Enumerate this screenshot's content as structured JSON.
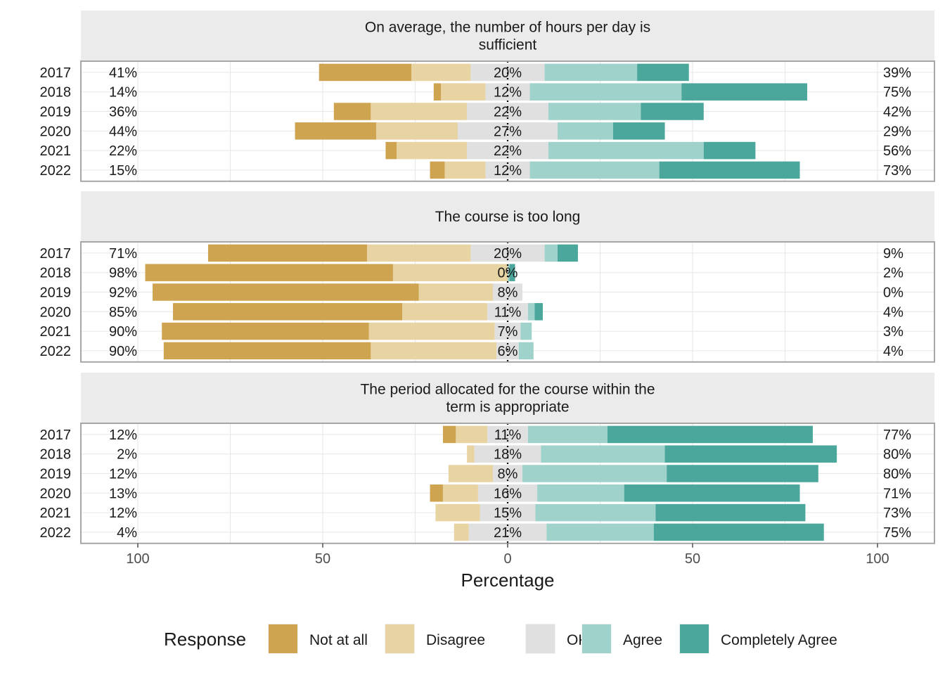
{
  "chart_data": {
    "type": "bar",
    "subtype": "diverging-stacked-horizontal",
    "x_axis_label": "Percentage",
    "x_ticks": [
      100,
      50,
      0,
      50,
      100
    ],
    "x_range": [
      -100,
      100
    ],
    "legend": {
      "title": "Response",
      "position": "bottom",
      "entries": [
        "Not at all",
        "Disagree",
        "OK",
        "Agree",
        "Completely Agree"
      ]
    },
    "colors": {
      "Not at all": "#CFA451",
      "Disagree": "#E8D3A2",
      "OK": "#E0E0E0",
      "Agree": "#9ED2CB",
      "Completely Agree": "#4BA79B"
    },
    "panels": [
      {
        "title_lines": [
          "On average, the number of hours per day is",
          "sufficient"
        ],
        "rows": [
          {
            "year": "2017",
            "values": [
              25,
              16,
              20,
              25,
              14
            ],
            "left_label": "41%",
            "center_label": "20%",
            "right_label": "39%"
          },
          {
            "year": "2018",
            "values": [
              2,
              12,
              12,
              41,
              34
            ],
            "left_label": "14%",
            "center_label": "12%",
            "right_label": "75%"
          },
          {
            "year": "2019",
            "values": [
              10,
              26,
              22,
              25,
              17
            ],
            "left_label": "36%",
            "center_label": "22%",
            "right_label": "42%"
          },
          {
            "year": "2020",
            "values": [
              22,
              22,
              27,
              15,
              14
            ],
            "left_label": "44%",
            "center_label": "27%",
            "right_label": "29%"
          },
          {
            "year": "2021",
            "values": [
              3,
              19,
              22,
              42,
              14
            ],
            "left_label": "22%",
            "center_label": "22%",
            "right_label": "56%"
          },
          {
            "year": "2022",
            "values": [
              4,
              11,
              12,
              35,
              38
            ],
            "left_label": "15%",
            "center_label": "12%",
            "right_label": "73%"
          }
        ]
      },
      {
        "title_lines": [
          "The course is too long"
        ],
        "rows": [
          {
            "year": "2017",
            "values": [
              43,
              28,
              20,
              3.5,
              5.5
            ],
            "left_label": "71%",
            "center_label": "20%",
            "right_label": "9%"
          },
          {
            "year": "2018",
            "values": [
              67,
              31,
              0,
              0.5,
              1.5
            ],
            "left_label": "98%",
            "center_label": "0%",
            "right_label": "2%"
          },
          {
            "year": "2019",
            "values": [
              72,
              20,
              8,
              0,
              0
            ],
            "left_label": "92%",
            "center_label": "8%",
            "right_label": "0%"
          },
          {
            "year": "2020",
            "values": [
              62,
              23,
              11,
              1.8,
              2.2
            ],
            "left_label": "85%",
            "center_label": "11%",
            "right_label": "4%"
          },
          {
            "year": "2021",
            "values": [
              56,
              34,
              7,
              3,
              0
            ],
            "left_label": "90%",
            "center_label": "7%",
            "right_label": "3%"
          },
          {
            "year": "2022",
            "values": [
              56,
              34,
              6,
              4,
              0
            ],
            "left_label": "90%",
            "center_label": "6%",
            "right_label": "4%"
          }
        ]
      },
      {
        "title_lines": [
          "The period allocated for the course within the",
          "term is appropriate"
        ],
        "rows": [
          {
            "year": "2017",
            "values": [
              3.5,
              8.5,
              11,
              21.5,
              55.5
            ],
            "left_label": "12%",
            "center_label": "11%",
            "right_label": "77%"
          },
          {
            "year": "2018",
            "values": [
              0,
              2,
              18,
              33.5,
              46.5
            ],
            "left_label": "2%",
            "center_label": "18%",
            "right_label": "80%"
          },
          {
            "year": "2019",
            "values": [
              0,
              12,
              8,
              39,
              41
            ],
            "left_label": "12%",
            "center_label": "8%",
            "right_label": "80%"
          },
          {
            "year": "2020",
            "values": [
              3.5,
              9.5,
              16,
              23.5,
              47.5
            ],
            "left_label": "13%",
            "center_label": "16%",
            "right_label": "71%"
          },
          {
            "year": "2021",
            "values": [
              0,
              12,
              15,
              32.5,
              40.5
            ],
            "left_label": "12%",
            "center_label": "15%",
            "right_label": "73%"
          },
          {
            "year": "2022",
            "values": [
              0,
              4,
              21,
              29,
              46
            ],
            "left_label": "4%",
            "center_label": "21%",
            "right_label": "75%"
          }
        ]
      }
    ]
  }
}
